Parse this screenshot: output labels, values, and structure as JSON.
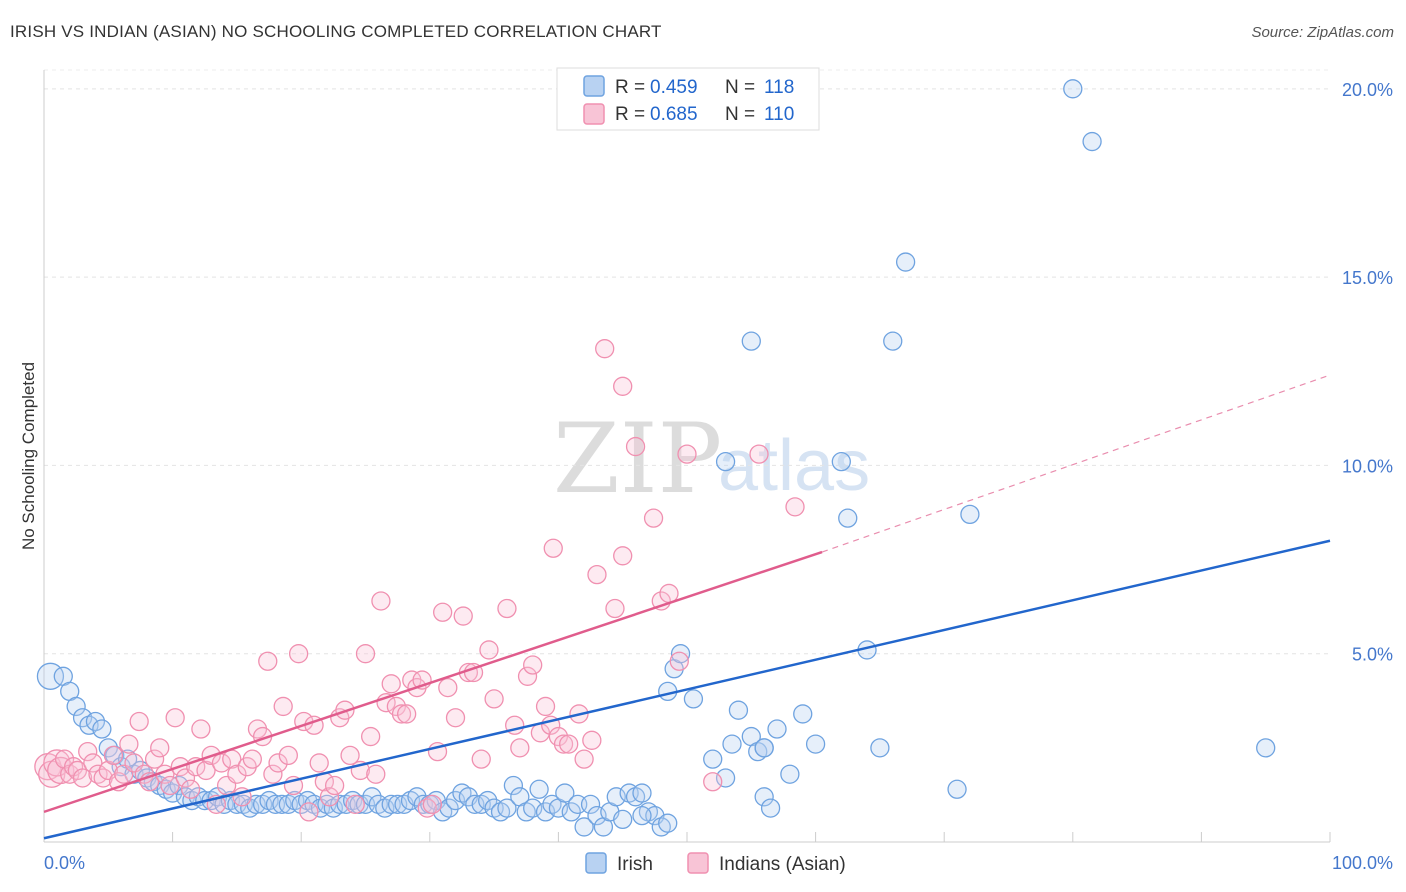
{
  "chart_data": {
    "type": "scatter",
    "title": "IRISH VS INDIAN (ASIAN) NO SCHOOLING COMPLETED CORRELATION CHART",
    "source": "Source: ZipAtlas.com",
    "ylabel": "No Schooling Completed",
    "xlabel": "",
    "xlim": [
      0,
      100
    ],
    "ylim": [
      0,
      20.5
    ],
    "x_tick_labels": [
      "0.0%",
      "100.0%"
    ],
    "y_ticks": [
      5,
      10,
      15,
      20
    ],
    "y_tick_labels": [
      "5.0%",
      "10.0%",
      "15.0%",
      "20.0%"
    ],
    "legend_placement": "top-center",
    "grid": true,
    "watermark": {
      "zip": "ZIP",
      "atlas": "atlas"
    },
    "legend": {
      "r_label": "R =",
      "n_label": "N =",
      "rows": [
        {
          "r": "0.459",
          "n": "118"
        },
        {
          "r": "0.685",
          "n": "110"
        }
      ]
    },
    "series": [
      {
        "name": "Irish",
        "color": "#6fa3e0",
        "line_color": "#2266cc",
        "trend": {
          "x": [
            0,
            100
          ],
          "y": [
            0.1,
            8.0
          ]
        },
        "points": [
          [
            0.5,
            4.4
          ],
          [
            1.5,
            4.4
          ],
          [
            2,
            4
          ],
          [
            2.5,
            3.6
          ],
          [
            3,
            3.3
          ],
          [
            3.5,
            3.1
          ],
          [
            4,
            3.2
          ],
          [
            4.5,
            3
          ],
          [
            5,
            2.5
          ],
          [
            5.5,
            2.3
          ],
          [
            6,
            2
          ],
          [
            6.5,
            2.2
          ],
          [
            7,
            1.8
          ],
          [
            7.5,
            1.9
          ],
          [
            8,
            1.7
          ],
          [
            8.5,
            1.6
          ],
          [
            9,
            1.5
          ],
          [
            9.5,
            1.4
          ],
          [
            10,
            1.3
          ],
          [
            10.5,
            1.5
          ],
          [
            11,
            1.2
          ],
          [
            11.5,
            1.1
          ],
          [
            12,
            1.2
          ],
          [
            12.5,
            1.1
          ],
          [
            13,
            1.1
          ],
          [
            13.5,
            1.2
          ],
          [
            14,
            1
          ],
          [
            14.5,
            1.1
          ],
          [
            15,
            1
          ],
          [
            15.5,
            1
          ],
          [
            16,
            0.9
          ],
          [
            16.5,
            1
          ],
          [
            17,
            1
          ],
          [
            17.5,
            1.1
          ],
          [
            18,
            1
          ],
          [
            18.5,
            1
          ],
          [
            19,
            1
          ],
          [
            19.5,
            1.1
          ],
          [
            20,
            1
          ],
          [
            20.5,
            1.1
          ],
          [
            21,
            1
          ],
          [
            21.5,
            0.9
          ],
          [
            22,
            1
          ],
          [
            22.5,
            0.9
          ],
          [
            23,
            1
          ],
          [
            23.5,
            1
          ],
          [
            24,
            1.1
          ],
          [
            24.5,
            1
          ],
          [
            25,
            1
          ],
          [
            25.5,
            1.2
          ],
          [
            26,
            1
          ],
          [
            26.5,
            0.9
          ],
          [
            27,
            1
          ],
          [
            27.5,
            1
          ],
          [
            28,
            1
          ],
          [
            28.5,
            1.1
          ],
          [
            29,
            1.2
          ],
          [
            29.5,
            1
          ],
          [
            30,
            1
          ],
          [
            30.5,
            1.1
          ],
          [
            31,
            0.8
          ],
          [
            31.5,
            0.9
          ],
          [
            32,
            1.1
          ],
          [
            32.5,
            1.3
          ],
          [
            33,
            1.2
          ],
          [
            33.5,
            1
          ],
          [
            34,
            1
          ],
          [
            34.5,
            1.1
          ],
          [
            35,
            0.9
          ],
          [
            35.5,
            0.8
          ],
          [
            36,
            0.9
          ],
          [
            36.5,
            1.5
          ],
          [
            37,
            1.2
          ],
          [
            37.5,
            0.8
          ],
          [
            38,
            0.9
          ],
          [
            38.5,
            1.4
          ],
          [
            39,
            0.8
          ],
          [
            39.5,
            1
          ],
          [
            40,
            0.9
          ],
          [
            40.5,
            1.3
          ],
          [
            41,
            0.8
          ],
          [
            41.5,
            1
          ],
          [
            42,
            0.4
          ],
          [
            42.5,
            1
          ],
          [
            43,
            0.7
          ],
          [
            43.5,
            0.4
          ],
          [
            44,
            0.8
          ],
          [
            44.5,
            1.2
          ],
          [
            45,
            0.6
          ],
          [
            45.5,
            1.3
          ],
          [
            46,
            1.2
          ],
          [
            46.5,
            1.3
          ],
          [
            47,
            0.8
          ],
          [
            47.5,
            0.7
          ],
          [
            48,
            0.4
          ],
          [
            48.5,
            0.5
          ],
          [
            46.5,
            0.7
          ],
          [
            48.5,
            4
          ],
          [
            49,
            4.6
          ],
          [
            49.5,
            5
          ],
          [
            50.5,
            3.8
          ],
          [
            52,
            2.2
          ],
          [
            53,
            1.7
          ],
          [
            53.5,
            2.6
          ],
          [
            54,
            3.5
          ],
          [
            55,
            2.8
          ],
          [
            55.5,
            2.4
          ],
          [
            53,
            10.1
          ],
          [
            55,
            13.3
          ],
          [
            56,
            1.2
          ],
          [
            56.5,
            0.9
          ],
          [
            56,
            2.5
          ],
          [
            57,
            3
          ],
          [
            58,
            1.8
          ],
          [
            59,
            3.4
          ],
          [
            60,
            2.6
          ],
          [
            62,
            10.1
          ],
          [
            62.5,
            8.6
          ],
          [
            64,
            5.1
          ],
          [
            65,
            2.5
          ],
          [
            66,
            13.3
          ],
          [
            67,
            15.4
          ],
          [
            72,
            8.7
          ],
          [
            71,
            1.4
          ],
          [
            80,
            20
          ],
          [
            81.5,
            18.6
          ],
          [
            95,
            2.5
          ],
          [
            56,
            2.5
          ]
        ]
      },
      {
        "name": "Indians (Asian)",
        "color": "#f090b0",
        "line_color": "#e05c8c",
        "trend": {
          "x": [
            0,
            60.5
          ],
          "y": [
            0.8,
            7.7
          ],
          "dash_to": {
            "x": 100,
            "y": 12.4
          }
        },
        "points": [
          [
            0.3,
            2
          ],
          [
            0.6,
            1.8
          ],
          [
            1,
            2.1
          ],
          [
            1.3,
            1.9
          ],
          [
            1.6,
            2.2
          ],
          [
            2,
            1.8
          ],
          [
            2.3,
            2
          ],
          [
            2.6,
            1.9
          ],
          [
            3,
            1.7
          ],
          [
            3.4,
            2.4
          ],
          [
            3.8,
            2.1
          ],
          [
            4.2,
            1.8
          ],
          [
            4.6,
            1.7
          ],
          [
            5,
            1.9
          ],
          [
            5.4,
            2.3
          ],
          [
            5.8,
            1.6
          ],
          [
            6.2,
            1.8
          ],
          [
            6.6,
            2.6
          ],
          [
            7,
            2.1
          ],
          [
            7.4,
            3.2
          ],
          [
            7.8,
            1.8
          ],
          [
            8.2,
            1.6
          ],
          [
            8.6,
            2.2
          ],
          [
            9,
            2.5
          ],
          [
            9.4,
            1.8
          ],
          [
            9.8,
            1.5
          ],
          [
            10.2,
            3.3
          ],
          [
            10.6,
            2
          ],
          [
            11,
            1.7
          ],
          [
            11.4,
            1.4
          ],
          [
            11.8,
            2
          ],
          [
            12.2,
            3
          ],
          [
            12.6,
            1.9
          ],
          [
            13,
            2.3
          ],
          [
            13.4,
            1
          ],
          [
            13.8,
            2.1
          ],
          [
            14.2,
            1.5
          ],
          [
            14.6,
            2.2
          ],
          [
            15,
            1.8
          ],
          [
            15.4,
            1.2
          ],
          [
            15.8,
            2
          ],
          [
            16.2,
            2.2
          ],
          [
            16.6,
            3
          ],
          [
            17,
            2.8
          ],
          [
            17.4,
            4.8
          ],
          [
            17.8,
            1.8
          ],
          [
            18.2,
            2.1
          ],
          [
            18.6,
            3.6
          ],
          [
            19,
            2.3
          ],
          [
            19.4,
            1.5
          ],
          [
            19.8,
            5
          ],
          [
            20.2,
            3.2
          ],
          [
            20.6,
            0.8
          ],
          [
            21,
            3.1
          ],
          [
            21.4,
            2.1
          ],
          [
            21.8,
            1.6
          ],
          [
            22.2,
            1.2
          ],
          [
            22.6,
            1.5
          ],
          [
            23,
            3.3
          ],
          [
            23.4,
            3.5
          ],
          [
            23.8,
            2.3
          ],
          [
            24.2,
            1
          ],
          [
            24.6,
            1.9
          ],
          [
            25,
            5
          ],
          [
            25.4,
            2.8
          ],
          [
            25.8,
            1.8
          ],
          [
            26.2,
            6.4
          ],
          [
            26.6,
            3.7
          ],
          [
            27,
            4.2
          ],
          [
            27.4,
            3.6
          ],
          [
            27.8,
            3.4
          ],
          [
            28.2,
            3.4
          ],
          [
            28.6,
            4.3
          ],
          [
            29,
            4.1
          ],
          [
            29.4,
            4.3
          ],
          [
            29.8,
            0.9
          ],
          [
            30.2,
            1
          ],
          [
            30.6,
            2.4
          ],
          [
            31,
            6.1
          ],
          [
            31.4,
            4.1
          ],
          [
            32,
            3.3
          ],
          [
            32.6,
            6
          ],
          [
            33,
            4.5
          ],
          [
            33.4,
            4.5
          ],
          [
            34,
            2.2
          ],
          [
            34.6,
            5.1
          ],
          [
            35,
            3.8
          ],
          [
            36,
            6.2
          ],
          [
            36.6,
            3.1
          ],
          [
            37,
            2.5
          ],
          [
            37.6,
            4.4
          ],
          [
            38,
            4.7
          ],
          [
            38.6,
            2.9
          ],
          [
            39,
            3.6
          ],
          [
            39.4,
            3.1
          ],
          [
            39.6,
            7.8
          ],
          [
            40,
            2.8
          ],
          [
            40.4,
            2.6
          ],
          [
            40.8,
            2.6
          ],
          [
            41.6,
            3.4
          ],
          [
            42,
            2.2
          ],
          [
            42.6,
            2.7
          ],
          [
            43,
            7.1
          ],
          [
            43.6,
            13.1
          ],
          [
            44.4,
            6.2
          ],
          [
            45,
            7.6
          ],
          [
            45,
            12.1
          ],
          [
            46,
            10.5
          ],
          [
            47.4,
            8.6
          ],
          [
            48,
            6.4
          ],
          [
            48.6,
            6.6
          ],
          [
            49.4,
            4.8
          ],
          [
            50,
            10.3
          ],
          [
            52,
            1.6
          ],
          [
            55.6,
            10.3
          ],
          [
            58.4,
            8.9
          ]
        ]
      }
    ]
  }
}
